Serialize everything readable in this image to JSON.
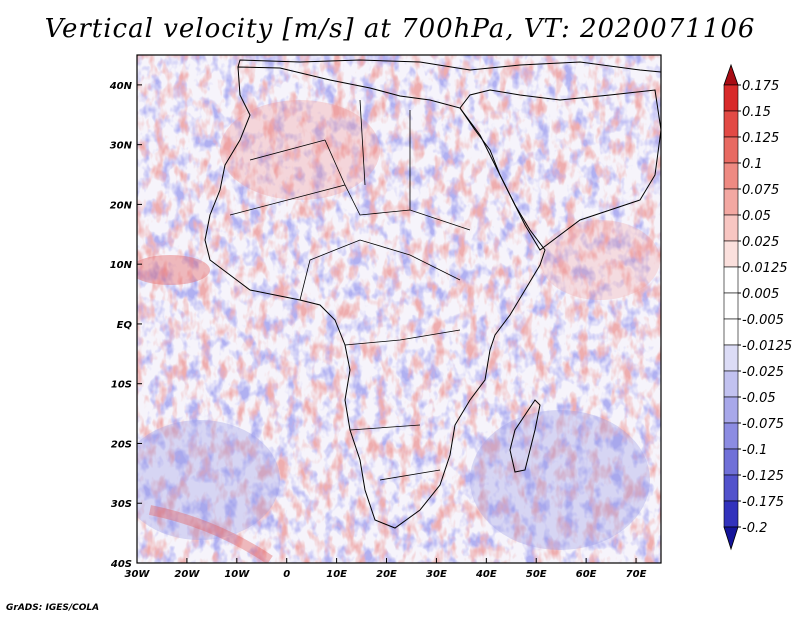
{
  "title": "Vertical velocity [m/s] at 700hPa, VT: 2020071106",
  "credit": "GrADS: IGES/COLA",
  "map": {
    "lon_range": [
      -30,
      75
    ],
    "lat_range": [
      -40,
      45
    ],
    "lon_ticks": [
      {
        "value": -30,
        "label": "30W"
      },
      {
        "value": -20,
        "label": "20W"
      },
      {
        "value": -10,
        "label": "10W"
      },
      {
        "value": 0,
        "label": "0"
      },
      {
        "value": 10,
        "label": "10E"
      },
      {
        "value": 20,
        "label": "20E"
      },
      {
        "value": 30,
        "label": "30E"
      },
      {
        "value": 40,
        "label": "40E"
      },
      {
        "value": 50,
        "label": "50E"
      },
      {
        "value": 60,
        "label": "60E"
      },
      {
        "value": 70,
        "label": "70E"
      }
    ],
    "lat_ticks": [
      {
        "value": 40,
        "label": "40N"
      },
      {
        "value": 30,
        "label": "30N"
      },
      {
        "value": 20,
        "label": "20N"
      },
      {
        "value": 10,
        "label": "10N"
      },
      {
        "value": 0,
        "label": "EQ"
      },
      {
        "value": -10,
        "label": "10S"
      },
      {
        "value": -20,
        "label": "20S"
      },
      {
        "value": -30,
        "label": "30S"
      },
      {
        "value": -40,
        "label": "40S"
      }
    ]
  },
  "colorbar": {
    "levels": [
      {
        "label": "0.175",
        "color": "#c0141b"
      },
      {
        "label": "0.15",
        "color": "#d82a2a"
      },
      {
        "label": "0.125",
        "color": "#e24a45"
      },
      {
        "label": "0.1",
        "color": "#e86a62"
      },
      {
        "label": "0.075",
        "color": "#ee8a82"
      },
      {
        "label": "0.05",
        "color": "#f3a8a2"
      },
      {
        "label": "0.025",
        "color": "#f8c6c2"
      },
      {
        "label": "0.0125",
        "color": "#fbe0dd"
      },
      {
        "label": "0.005",
        "color": "#ffffff"
      },
      {
        "label": "-0.005",
        "color": "#ffffff"
      },
      {
        "label": "-0.0125",
        "color": "#dcdcf6"
      },
      {
        "label": "-0.025",
        "color": "#c2c2f0"
      },
      {
        "label": "-0.05",
        "color": "#a8a8ea"
      },
      {
        "label": "-0.075",
        "color": "#8c8ce2"
      },
      {
        "label": "-0.1",
        "color": "#7070d8"
      },
      {
        "label": "-0.125",
        "color": "#5252cc"
      },
      {
        "label": "-0.175",
        "color": "#3232bc"
      },
      {
        "label": "-0.2",
        "color": "#1e1ea8"
      }
    ],
    "top_triangle_color": "#a80c14",
    "bottom_triangle_color": "#14149a"
  }
}
